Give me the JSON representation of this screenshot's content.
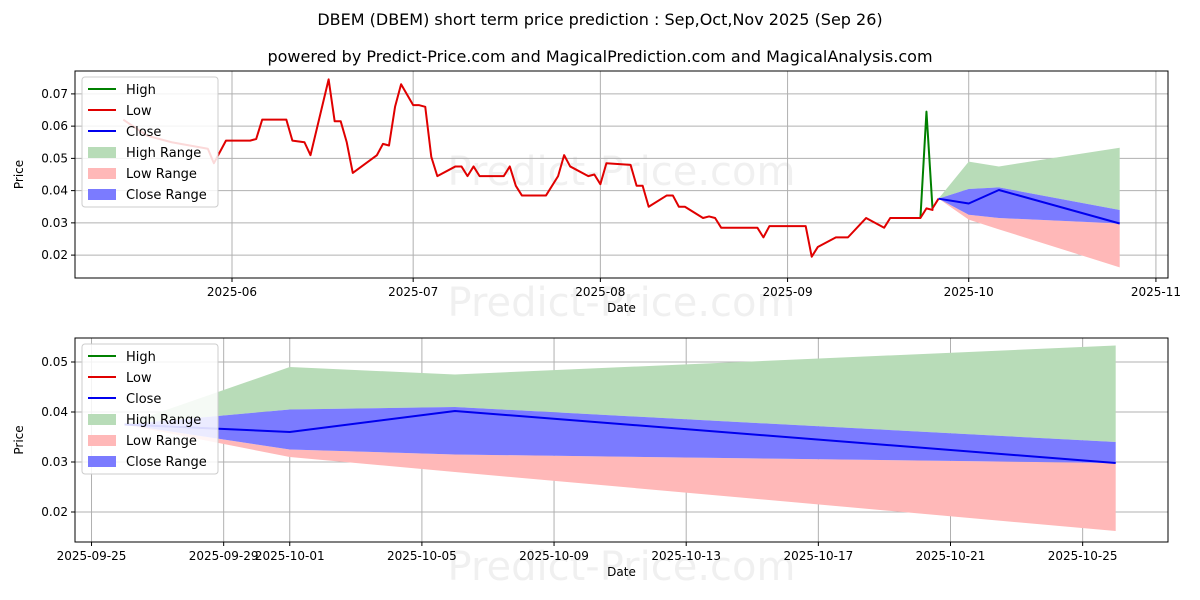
{
  "title": "DBEM (DBEM) short term price prediction : Sep,Oct,Nov 2025 (Sep 26)",
  "subtitle": "powered by Predict-Price.com and MagicalPrediction.com and MagicalAnalysis.com",
  "watermark": "Predict-Price.com",
  "colors": {
    "high": "#008000",
    "low": "#e00000",
    "close": "#0000ee",
    "high_range": "#b8dcb8",
    "low_range": "#ffb8b8",
    "close_range": "#7b7bff"
  },
  "legend": [
    "High",
    "Low",
    "Close",
    "High Range",
    "Low Range",
    "Close Range"
  ],
  "chart_data": [
    {
      "type": "line",
      "xlabel": "Date",
      "ylabel": "Price",
      "xlim": [
        "2025-05-06",
        "2025-11-03"
      ],
      "ylim": [
        0.0129,
        0.0771
      ],
      "xticks": [
        "2025-06-01",
        "2025-07-01",
        "2025-08-01",
        "2025-09-01",
        "2025-10-01",
        "2025-11-01"
      ],
      "xtick_labels": [
        "2025-06",
        "2025-07",
        "2025-08",
        "2025-09",
        "2025-10",
        "2025-11"
      ],
      "yticks": [
        0.02,
        0.03,
        0.04,
        0.05,
        0.06,
        0.07
      ],
      "ytick_labels": [
        "0.02",
        "0.03",
        "0.04",
        "0.05",
        "0.06",
        "0.07"
      ],
      "grid": true,
      "legend_position": "top-left",
      "series": {
        "low": [
          [
            "2025-05-14",
            0.062
          ],
          [
            "2025-05-18",
            0.057
          ],
          [
            "2025-05-22",
            0.055
          ],
          [
            "2025-05-28",
            0.053
          ],
          [
            "2025-05-29",
            0.0485
          ],
          [
            "2025-05-31",
            0.0555
          ],
          [
            "2025-06-04",
            0.0555
          ],
          [
            "2025-06-05",
            0.056
          ],
          [
            "2025-06-06",
            0.062
          ],
          [
            "2025-06-10",
            0.062
          ],
          [
            "2025-06-11",
            0.0555
          ],
          [
            "2025-06-13",
            0.055
          ],
          [
            "2025-06-14",
            0.051
          ],
          [
            "2025-06-17",
            0.0745
          ],
          [
            "2025-06-18",
            0.0615
          ],
          [
            "2025-06-19",
            0.0615
          ],
          [
            "2025-06-20",
            0.055
          ],
          [
            "2025-06-21",
            0.0455
          ],
          [
            "2025-06-25",
            0.051
          ],
          [
            "2025-06-26",
            0.0545
          ],
          [
            "2025-06-27",
            0.054
          ],
          [
            "2025-06-28",
            0.066
          ],
          [
            "2025-06-29",
            0.073
          ],
          [
            "2025-07-01",
            0.0665
          ],
          [
            "2025-07-02",
            0.0665
          ],
          [
            "2025-07-03",
            0.066
          ],
          [
            "2025-07-04",
            0.0505
          ],
          [
            "2025-07-05",
            0.0445
          ],
          [
            "2025-07-08",
            0.0475
          ],
          [
            "2025-07-09",
            0.0475
          ],
          [
            "2025-07-10",
            0.0445
          ],
          [
            "2025-07-11",
            0.0475
          ],
          [
            "2025-07-12",
            0.0445
          ],
          [
            "2025-07-16",
            0.0445
          ],
          [
            "2025-07-17",
            0.0475
          ],
          [
            "2025-07-18",
            0.0415
          ],
          [
            "2025-07-19",
            0.0385
          ],
          [
            "2025-07-23",
            0.0385
          ],
          [
            "2025-07-25",
            0.0445
          ],
          [
            "2025-07-26",
            0.051
          ],
          [
            "2025-07-27",
            0.0475
          ],
          [
            "2025-07-30",
            0.0445
          ],
          [
            "2025-07-31",
            0.045
          ],
          [
            "2025-08-01",
            0.042
          ],
          [
            "2025-08-02",
            0.0485
          ],
          [
            "2025-08-06",
            0.048
          ],
          [
            "2025-08-07",
            0.0415
          ],
          [
            "2025-08-08",
            0.0415
          ],
          [
            "2025-08-09",
            0.035
          ],
          [
            "2025-08-12",
            0.0385
          ],
          [
            "2025-08-13",
            0.0385
          ],
          [
            "2025-08-14",
            0.035
          ],
          [
            "2025-08-15",
            0.035
          ],
          [
            "2025-08-18",
            0.0315
          ],
          [
            "2025-08-19",
            0.032
          ],
          [
            "2025-08-20",
            0.0315
          ],
          [
            "2025-08-21",
            0.0285
          ],
          [
            "2025-08-27",
            0.0285
          ],
          [
            "2025-08-28",
            0.0255
          ],
          [
            "2025-08-29",
            0.029
          ],
          [
            "2025-09-04",
            0.029
          ],
          [
            "2025-09-05",
            0.0195
          ],
          [
            "2025-09-06",
            0.0225
          ],
          [
            "2025-09-09",
            0.0255
          ],
          [
            "2025-09-11",
            0.0255
          ],
          [
            "2025-09-14",
            0.0315
          ],
          [
            "2025-09-17",
            0.0285
          ],
          [
            "2025-09-18",
            0.0315
          ],
          [
            "2025-09-23",
            0.0315
          ],
          [
            "2025-09-24",
            0.0345
          ],
          [
            "2025-09-25",
            0.034
          ],
          [
            "2025-09-25",
            0.0345
          ],
          [
            "2025-09-26",
            0.0375
          ]
        ],
        "high": [
          [
            "2025-09-23",
            0.0315
          ],
          [
            "2025-09-24",
            0.0645
          ],
          [
            "2025-09-25",
            0.0345
          ]
        ],
        "close": [
          [
            "2025-09-26",
            0.0375
          ],
          [
            "2025-10-01",
            0.036
          ],
          [
            "2025-10-06",
            0.0402
          ],
          [
            "2025-10-26",
            0.0298
          ]
        ],
        "high_range": {
          "dates": [
            "2025-09-26",
            "2025-10-01",
            "2025-10-06",
            "2025-10-26"
          ],
          "upper": [
            0.0375,
            0.049,
            0.0475,
            0.0533
          ],
          "lower": [
            0.0375,
            0.0405,
            0.041,
            0.034
          ]
        },
        "close_range": {
          "dates": [
            "2025-09-26",
            "2025-10-01",
            "2025-10-06",
            "2025-10-26"
          ],
          "upper": [
            0.0375,
            0.0405,
            0.041,
            0.034
          ],
          "lower": [
            0.0375,
            0.0325,
            0.0315,
            0.0298
          ]
        },
        "low_range": {
          "dates": [
            "2025-09-26",
            "2025-10-01",
            "2025-10-06",
            "2025-10-26"
          ],
          "upper": [
            0.0375,
            0.0325,
            0.0315,
            0.0298
          ],
          "lower": [
            0.0375,
            0.031,
            0.028,
            0.0162
          ]
        }
      }
    },
    {
      "type": "line",
      "xlabel": "Date",
      "ylabel": "Price",
      "xlim": [
        "2025-09-24T12:00",
        "2025-10-27T14:00"
      ],
      "ylim": [
        0.014,
        0.0548
      ],
      "xticks": [
        "2025-09-25",
        "2025-09-29",
        "2025-10-01",
        "2025-10-05",
        "2025-10-09",
        "2025-10-13",
        "2025-10-17",
        "2025-10-21",
        "2025-10-25"
      ],
      "xtick_labels": [
        "2025-09-25",
        "2025-09-29",
        "2025-10-01",
        "2025-10-05",
        "2025-10-09",
        "2025-10-13",
        "2025-10-17",
        "2025-10-21",
        "2025-10-25"
      ],
      "yticks": [
        0.02,
        0.03,
        0.04,
        0.05
      ],
      "ytick_labels": [
        "0.02",
        "0.03",
        "0.04",
        "0.05"
      ],
      "grid": true,
      "legend_position": "top-left",
      "series": {
        "close": [
          [
            "2025-09-26",
            0.0375
          ],
          [
            "2025-10-01",
            0.036
          ],
          [
            "2025-10-06",
            0.0402
          ],
          [
            "2025-10-26",
            0.0298
          ]
        ],
        "high_range": {
          "dates": [
            "2025-09-26",
            "2025-10-01",
            "2025-10-06",
            "2025-10-26"
          ],
          "upper": [
            0.0375,
            0.049,
            0.0475,
            0.0533
          ],
          "lower": [
            0.0375,
            0.0405,
            0.041,
            0.034
          ]
        },
        "close_range": {
          "dates": [
            "2025-09-26",
            "2025-10-01",
            "2025-10-06",
            "2025-10-26"
          ],
          "upper": [
            0.0375,
            0.0405,
            0.041,
            0.034
          ],
          "lower": [
            0.0375,
            0.0325,
            0.0315,
            0.0298
          ]
        },
        "low_range": {
          "dates": [
            "2025-09-26",
            "2025-10-01",
            "2025-10-06",
            "2025-10-26"
          ],
          "upper": [
            0.0375,
            0.0325,
            0.0315,
            0.0298
          ],
          "lower": [
            0.0375,
            0.031,
            0.028,
            0.0162
          ]
        }
      }
    }
  ]
}
